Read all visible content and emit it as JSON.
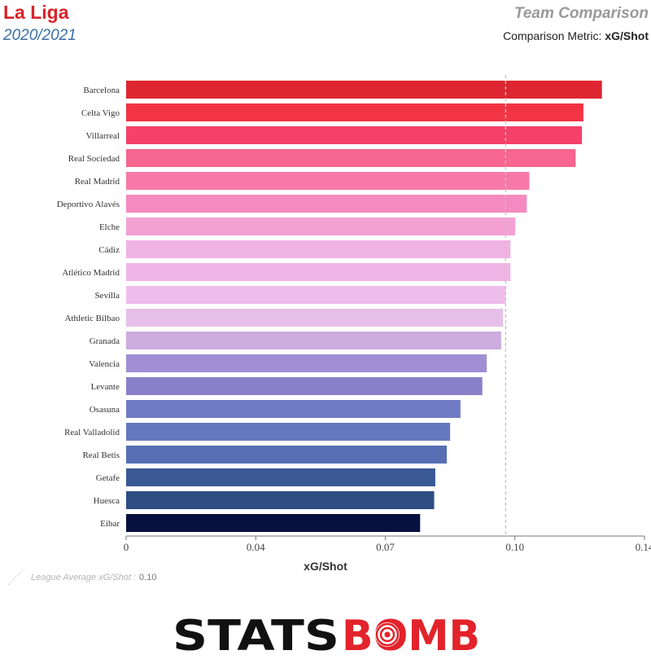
{
  "header": {
    "league": "La Liga",
    "season": "2020/2021",
    "comparison_title": "Team Comparison",
    "metric_prefix": "Comparison Metric:",
    "metric_name": "xG/Shot"
  },
  "legend": {
    "label": "League Average xG/Shot :",
    "value": "0.10"
  },
  "brand": {
    "text_left": "STATS",
    "text_right": "BOMB",
    "color_dark": "#111111",
    "color_red": "#e3232b"
  },
  "chart_data": {
    "type": "bar",
    "orientation": "horizontal",
    "xlabel": "xG/Shot",
    "xlim": [
      0,
      0.14
    ],
    "ticks": [
      0,
      0.035,
      0.07,
      0.105,
      0.14
    ],
    "tick_labels": [
      "0",
      "0.04",
      "0.07",
      "0.10",
      "0.14"
    ],
    "reference_line": 0.1025,
    "categories": [
      "Barcelona",
      "Celta Vigo",
      "Villarreal",
      "Real Sociedad",
      "Real Madrid",
      "Deportivo Alavés",
      "Elche",
      "Cádiz",
      "Atlético Madrid",
      "Sevilla",
      "Athletic Bilbao",
      "Granada",
      "Valencia",
      "Levante",
      "Osasuna",
      "Real Valladolid",
      "Real Betis",
      "Getafe",
      "Huesca",
      "Eibar"
    ],
    "values": [
      0.1285,
      0.1235,
      0.1231,
      0.1214,
      0.1089,
      0.1082,
      0.1051,
      0.1038,
      0.1038,
      0.1025,
      0.1018,
      0.1013,
      0.0974,
      0.0962,
      0.0903,
      0.0875,
      0.0866,
      0.0835,
      0.0832,
      0.0794
    ],
    "colors": [
      "#dd2630",
      "#f23445",
      "#f5406a",
      "#f6668f",
      "#f779a8",
      "#f58ac0",
      "#f3a1d3",
      "#f0b2e2",
      "#f0b5e7",
      "#efbdeb",
      "#e7c0ea",
      "#cdacdf",
      "#9f8ed3",
      "#8980c9",
      "#6f7bc4",
      "#6578bf",
      "#566fb2",
      "#3a5995",
      "#2d4d83",
      "#07103f"
    ]
  }
}
